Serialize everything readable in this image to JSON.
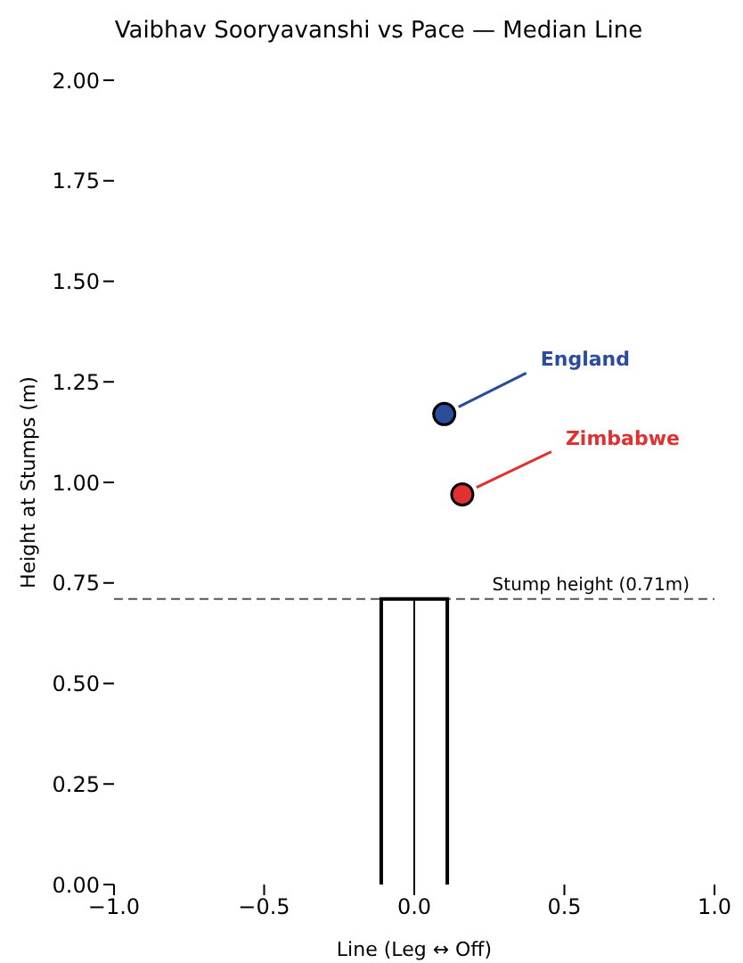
{
  "chart_data": {
    "type": "scatter",
    "title": "Vaibhav Sooryavanshi vs Pace — Median Line",
    "xlabel": "Line (Leg ↔ Off)",
    "ylabel": "Height at Stumps (m)",
    "series": [
      {
        "name": "England",
        "color": "#2b4c9b",
        "x": [
          0.1
        ],
        "values": [
          1.17
        ]
      },
      {
        "name": "Zimbabwe",
        "color": "#e03030",
        "x": [
          0.16
        ],
        "values": [
          0.97
        ]
      }
    ],
    "xlim": [
      -1,
      1
    ],
    "xticks": [
      {
        "value": -1,
        "label": "−1.0"
      },
      {
        "value": -0.5,
        "label": "−0.5"
      },
      {
        "value": 0,
        "label": "0.0"
      },
      {
        "value": 0.5,
        "label": "0.5"
      },
      {
        "value": 1,
        "label": "1.0"
      }
    ],
    "ylim": [
      0,
      2
    ],
    "yticks": [
      {
        "value": 0,
        "label": "0.00"
      },
      {
        "value": 0.25,
        "label": "0.25"
      },
      {
        "value": 0.5,
        "label": "0.50"
      },
      {
        "value": 0.75,
        "label": "0.75"
      },
      {
        "value": 1,
        "label": "1.00"
      },
      {
        "value": 1.25,
        "label": "1.25"
      },
      {
        "value": 1.5,
        "label": "1.50"
      },
      {
        "value": 1.75,
        "label": "1.75"
      },
      {
        "value": 2,
        "label": "2.00"
      }
    ],
    "ref_lines": [
      {
        "axis": "y",
        "value": 0.71,
        "label": "Stump height (0.71m)",
        "color": "#555555",
        "line_style": "dashed"
      }
    ],
    "grid": false,
    "legend": false,
    "marker": "circle"
  }
}
